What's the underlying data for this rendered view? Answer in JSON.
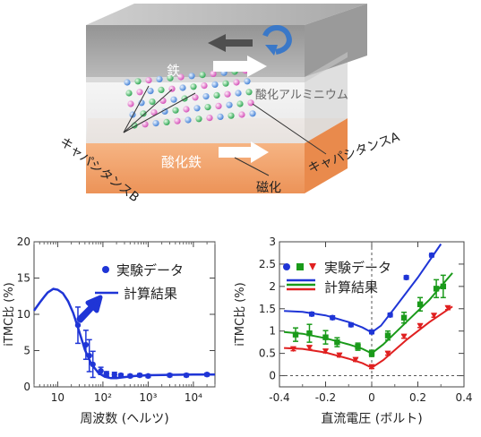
{
  "diagram": {
    "layer_iron": "鉄",
    "layer_alumina": "酸化アルミニウム",
    "layer_iron_oxide": "酸化鉄",
    "magnetization_label": "磁化",
    "capacitance_a_label": "キャパシタンスA",
    "capacitance_b_label": "キャパシタンスB",
    "colors": {
      "top_layer": "#a8a8a8",
      "middle_layer": "#eeeeee",
      "bottom_layer": "#f2a46c",
      "accent_arrow": "#3a78c8"
    }
  },
  "chart_data": [
    {
      "type": "scatter",
      "xscale": "log",
      "xlabel": "周波数 (ヘルツ)",
      "ylabel": "iTMC比 (%)",
      "xlim": [
        3,
        30000
      ],
      "ylim": [
        0,
        20
      ],
      "x_tick_labels": [
        "10",
        "10²",
        "10³",
        "10⁴"
      ],
      "y_tick_labels": [
        "0",
        "5",
        "10",
        "15",
        "20"
      ],
      "legend": [
        "実験データ",
        "計算結果"
      ],
      "series": [
        {
          "name": "実験データ",
          "color": "#1f35d6",
          "points": [
            {
              "x": 28,
              "y": 8.5,
              "err": 2.5
            },
            {
              "x": 42,
              "y": 5.8,
              "err": 2.0
            },
            {
              "x": 50,
              "y": 4.3,
              "err": 2.2
            },
            {
              "x": 60,
              "y": 3.1,
              "err": 1.8
            },
            {
              "x": 90,
              "y": 2.2,
              "err": 0.5
            },
            {
              "x": 120,
              "y": 1.8,
              "err": 0.3
            },
            {
              "x": 180,
              "y": 1.7,
              "err": 0.3
            },
            {
              "x": 250,
              "y": 1.6,
              "err": 0.2
            },
            {
              "x": 400,
              "y": 1.5,
              "err": 0.2
            },
            {
              "x": 650,
              "y": 1.6,
              "err": 0.2
            },
            {
              "x": 1000,
              "y": 1.5,
              "err": 0.2
            },
            {
              "x": 3000,
              "y": 1.6,
              "err": 0.2
            },
            {
              "x": 7000,
              "y": 1.6,
              "err": 0.2
            },
            {
              "x": 20000,
              "y": 1.7,
              "err": 0.2
            }
          ]
        },
        {
          "name": "計算結果",
          "color": "#1f35d6",
          "line": [
            [
              3,
              10.5
            ],
            [
              4,
              11.6
            ],
            [
              5,
              12.4
            ],
            [
              6,
              13.0
            ],
            [
              8,
              13.5
            ],
            [
              10,
              13.4
            ],
            [
              13,
              12.9
            ],
            [
              17,
              11.8
            ],
            [
              22,
              10.2
            ],
            [
              30,
              7.6
            ],
            [
              40,
              5.1
            ],
            [
              55,
              3.2
            ],
            [
              80,
              1.9
            ],
            [
              110,
              1.4
            ],
            [
              150,
              1.2
            ],
            [
              200,
              1.2
            ],
            [
              300,
              1.35
            ],
            [
              500,
              1.5
            ],
            [
              1000,
              1.6
            ],
            [
              3000,
              1.65
            ],
            [
              10000,
              1.7
            ],
            [
              30000,
              1.7
            ]
          ]
        }
      ]
    },
    {
      "type": "scatter",
      "xlabel": "直流電圧 (ボルト)",
      "ylabel": "iTMC比 (%)",
      "xlim": [
        -0.4,
        0.4
      ],
      "ylim": [
        -0.25,
        3.0
      ],
      "x_tick_labels": [
        "-0.4",
        "-0.2",
        "0",
        "0.2",
        "0.4"
      ],
      "y_tick_labels": [
        "0",
        "0.5",
        "1",
        "1.5",
        "2",
        "2.5",
        "3"
      ],
      "legend": [
        "実験データ",
        "計算結果"
      ],
      "series": [
        {
          "color": "#1f35d6",
          "marker": "circle",
          "points": [
            [
              -0.26,
              1.38
            ],
            [
              -0.17,
              1.3
            ],
            [
              -0.09,
              1.14
            ],
            [
              0.0,
              0.98
            ],
            [
              0.08,
              1.36
            ],
            [
              0.15,
              2.2
            ],
            [
              0.26,
              2.7
            ]
          ],
          "line": [
            [
              -0.38,
              1.45
            ],
            [
              -0.3,
              1.43
            ],
            [
              -0.2,
              1.35
            ],
            [
              -0.1,
              1.2
            ],
            [
              -0.04,
              1.08
            ],
            [
              0.0,
              0.97
            ],
            [
              0.04,
              1.12
            ],
            [
              0.1,
              1.52
            ],
            [
              0.2,
              2.2
            ],
            [
              0.3,
              2.95
            ]
          ]
        },
        {
          "color": "#1a9a1a",
          "marker": "square",
          "points": [
            [
              -0.33,
              0.92
            ],
            [
              -0.27,
              0.95
            ],
            [
              -0.2,
              0.86
            ],
            [
              -0.15,
              0.75
            ],
            [
              -0.06,
              0.65
            ],
            [
              0.0,
              0.5
            ],
            [
              0.07,
              0.9
            ],
            [
              0.14,
              1.3
            ],
            [
              0.21,
              1.6
            ],
            [
              0.28,
              1.95
            ],
            [
              0.31,
              2.0
            ]
          ],
          "errors": [
            0.15,
            0.2,
            0.15,
            0.1,
            0.08,
            0.07,
            0.1,
            0.12,
            0.15,
            0.2,
            0.25
          ],
          "line": [
            [
              -0.38,
              0.98
            ],
            [
              -0.3,
              0.94
            ],
            [
              -0.2,
              0.84
            ],
            [
              -0.1,
              0.7
            ],
            [
              -0.04,
              0.6
            ],
            [
              0.0,
              0.5
            ],
            [
              0.05,
              0.7
            ],
            [
              0.15,
              1.2
            ],
            [
              0.25,
              1.7
            ],
            [
              0.35,
              2.3
            ]
          ]
        },
        {
          "color": "#e02020",
          "marker": "triangle-down",
          "points": [
            [
              -0.34,
              0.6
            ],
            [
              -0.27,
              0.63
            ],
            [
              -0.2,
              0.55
            ],
            [
              -0.14,
              0.46
            ],
            [
              -0.07,
              0.36
            ],
            [
              0.0,
              0.2
            ],
            [
              0.07,
              0.5
            ],
            [
              0.14,
              0.88
            ],
            [
              0.21,
              1.12
            ],
            [
              0.27,
              1.35
            ],
            [
              0.33,
              1.52
            ]
          ],
          "line": [
            [
              -0.38,
              0.62
            ],
            [
              -0.3,
              0.6
            ],
            [
              -0.2,
              0.52
            ],
            [
              -0.1,
              0.38
            ],
            [
              -0.04,
              0.28
            ],
            [
              0.0,
              0.18
            ],
            [
              0.05,
              0.35
            ],
            [
              0.15,
              0.8
            ],
            [
              0.25,
              1.2
            ],
            [
              0.35,
              1.55
            ]
          ]
        }
      ]
    }
  ]
}
